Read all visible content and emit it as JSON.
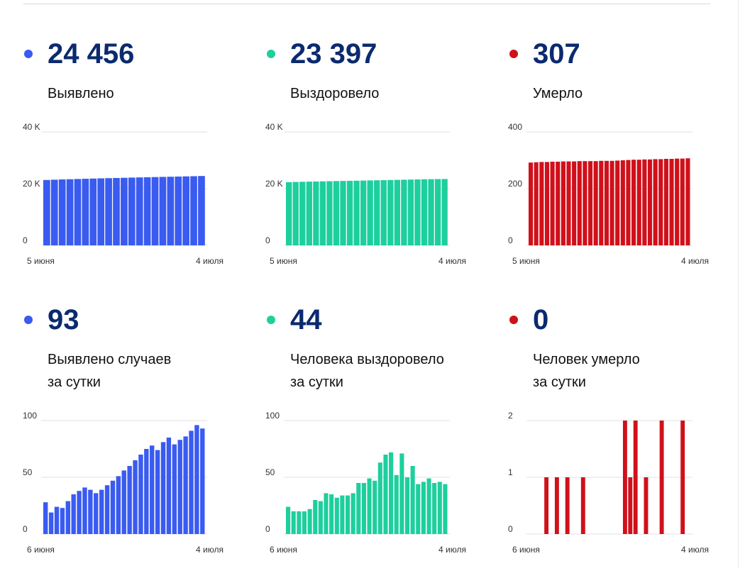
{
  "colors": {
    "blue": "#3a5bf0",
    "green": "#1ecf9e",
    "red": "#d0101a",
    "number": "#0b2a6f"
  },
  "cards": [
    {
      "value": "24 456",
      "label_lines": [
        "Выявлено"
      ],
      "color": "blue"
    },
    {
      "value": "23 397",
      "label_lines": [
        "Выздоровело"
      ],
      "color": "green"
    },
    {
      "value": "307",
      "label_lines": [
        "Умерло"
      ],
      "color": "red"
    },
    {
      "value": "93",
      "label_lines": [
        "Выявлено случаев",
        "за сутки"
      ],
      "color": "blue"
    },
    {
      "value": "44",
      "label_lines": [
        "Человека выздоровело",
        "за сутки"
      ],
      "color": "green"
    },
    {
      "value": "0",
      "label_lines": [
        "Человек умерло",
        "за сутки"
      ],
      "color": "red"
    }
  ],
  "chart_data": [
    {
      "type": "bar",
      "series": [
        {
          "name": "Выявлено",
          "color": "blue",
          "values": [
            23050,
            23150,
            23250,
            23320,
            23400,
            23480,
            23560,
            23630,
            23700,
            23760,
            23830,
            23900,
            23960,
            24020,
            24080,
            24140,
            24200,
            24260,
            24320,
            24380,
            24456
          ]
        }
      ],
      "ylim": [
        0,
        40000
      ],
      "yticks": [
        0,
        20000,
        40000
      ],
      "yticklabels": [
        "0",
        "20 K",
        "40 K"
      ],
      "xlabels": [
        "5 июня",
        "4 июля"
      ]
    },
    {
      "type": "bar",
      "series": [
        {
          "name": "Выздоровело",
          "color": "green",
          "values": [
            22300,
            22360,
            22420,
            22470,
            22520,
            22570,
            22620,
            22670,
            22720,
            22760,
            22800,
            22850,
            22900,
            22950,
            23000,
            23050,
            23100,
            23150,
            23200,
            23250,
            23300,
            23340,
            23370,
            23397
          ]
        }
      ],
      "ylim": [
        0,
        40000
      ],
      "yticks": [
        0,
        20000,
        40000
      ],
      "yticklabels": [
        "0",
        "20 K",
        "40 K"
      ],
      "xlabels": [
        "5 июня",
        "4 июля"
      ]
    },
    {
      "type": "bar",
      "series": [
        {
          "name": "Умерло",
          "color": "red",
          "values": [
            292,
            293,
            294,
            294,
            295,
            295,
            296,
            296,
            296,
            297,
            297,
            297,
            297,
            298,
            298,
            298,
            299,
            300,
            301,
            302,
            302,
            303,
            303,
            304,
            304,
            305,
            305,
            306,
            306,
            307
          ]
        }
      ],
      "ylim": [
        0,
        400
      ],
      "yticks": [
        0,
        200,
        400
      ],
      "yticklabels": [
        "0",
        "200",
        "400"
      ],
      "xlabels": [
        "5 июня",
        "4 июля"
      ]
    },
    {
      "type": "bar",
      "series": [
        {
          "name": "Выявлено случаев за сутки",
          "color": "blue",
          "values": [
            28,
            19,
            24,
            23,
            29,
            35,
            38,
            41,
            39,
            36,
            39,
            43,
            47,
            51,
            56,
            60,
            65,
            70,
            75,
            78,
            74,
            81,
            85,
            79,
            83,
            86,
            91,
            96,
            93
          ]
        }
      ],
      "ylim": [
        0,
        100
      ],
      "yticks": [
        0,
        50,
        100
      ],
      "yticklabels": [
        "0",
        "50",
        "100"
      ],
      "xlabels": [
        "6 июня",
        "4 июля"
      ]
    },
    {
      "type": "bar",
      "series": [
        {
          "name": "Человека выздоровело за сутки",
          "color": "green",
          "values": [
            24,
            20,
            20,
            20,
            22,
            30,
            29,
            36,
            35,
            32,
            34,
            34,
            36,
            45,
            45,
            49,
            47,
            63,
            70,
            72,
            52,
            71,
            50,
            60,
            44,
            46,
            49,
            45,
            46,
            44
          ]
        }
      ],
      "ylim": [
        0,
        100
      ],
      "yticks": [
        0,
        50,
        100
      ],
      "yticklabels": [
        "0",
        "50",
        "100"
      ],
      "xlabels": [
        "6 июня",
        "4 июля"
      ]
    },
    {
      "type": "bar",
      "series": [
        {
          "name": "Человек умерло за сутки",
          "color": "red",
          "values": [
            0,
            0,
            0,
            1,
            0,
            1,
            0,
            1,
            0,
            0,
            1,
            0,
            0,
            0,
            0,
            0,
            0,
            0,
            2,
            1,
            2,
            0,
            1,
            0,
            0,
            2,
            0,
            0,
            0,
            2,
            0
          ]
        }
      ],
      "ylim": [
        0,
        2
      ],
      "yticks": [
        0,
        1,
        2
      ],
      "yticklabels": [
        "0",
        "1",
        "2"
      ],
      "xlabels": [
        "6 июня",
        "4 июля"
      ]
    }
  ]
}
